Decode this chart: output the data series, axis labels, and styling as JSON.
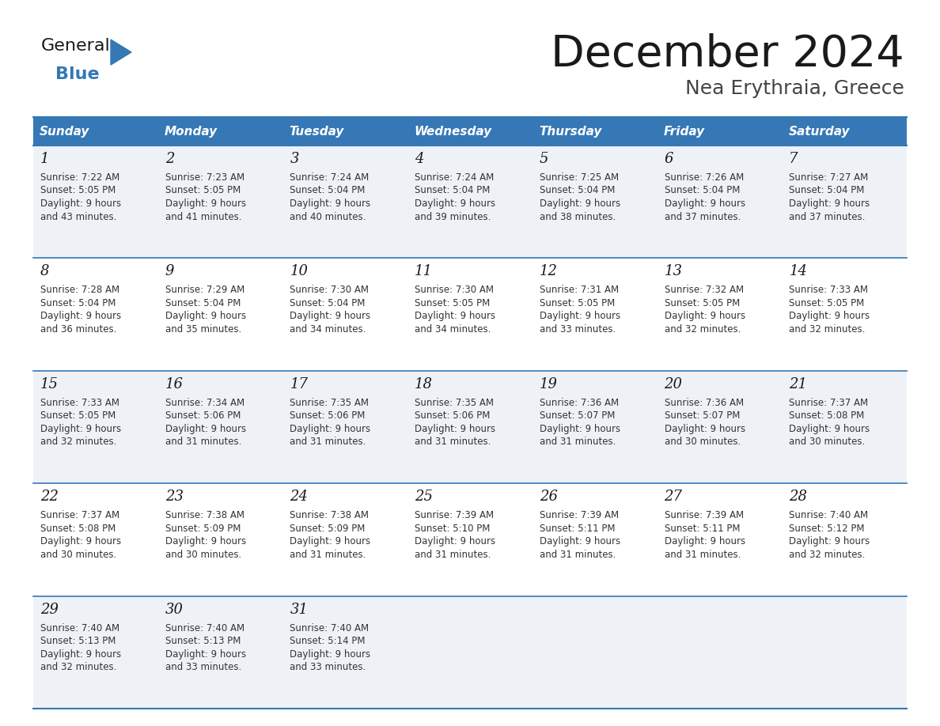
{
  "title": "December 2024",
  "subtitle": "Nea Erythraia, Greece",
  "header_color": "#3578b5",
  "header_text_color": "#ffffff",
  "days_of_week": [
    "Sunday",
    "Monday",
    "Tuesday",
    "Wednesday",
    "Thursday",
    "Friday",
    "Saturday"
  ],
  "row_bg_even": "#eef2f7",
  "row_bg_odd": "#ffffff",
  "cell_border_color": "#3578b5",
  "title_color": "#1a1a1a",
  "subtitle_color": "#444444",
  "text_color": "#333333",
  "day_num_color": "#1a1a1a",
  "calendar_data": [
    [
      {
        "day": 1,
        "sunrise": "7:22 AM",
        "sunset": "5:05 PM",
        "daylight": "9 hours and 43 minutes."
      },
      {
        "day": 2,
        "sunrise": "7:23 AM",
        "sunset": "5:05 PM",
        "daylight": "9 hours and 41 minutes."
      },
      {
        "day": 3,
        "sunrise": "7:24 AM",
        "sunset": "5:04 PM",
        "daylight": "9 hours and 40 minutes."
      },
      {
        "day": 4,
        "sunrise": "7:24 AM",
        "sunset": "5:04 PM",
        "daylight": "9 hours and 39 minutes."
      },
      {
        "day": 5,
        "sunrise": "7:25 AM",
        "sunset": "5:04 PM",
        "daylight": "9 hours and 38 minutes."
      },
      {
        "day": 6,
        "sunrise": "7:26 AM",
        "sunset": "5:04 PM",
        "daylight": "9 hours and 37 minutes."
      },
      {
        "day": 7,
        "sunrise": "7:27 AM",
        "sunset": "5:04 PM",
        "daylight": "9 hours and 37 minutes."
      }
    ],
    [
      {
        "day": 8,
        "sunrise": "7:28 AM",
        "sunset": "5:04 PM",
        "daylight": "9 hours and 36 minutes."
      },
      {
        "day": 9,
        "sunrise": "7:29 AM",
        "sunset": "5:04 PM",
        "daylight": "9 hours and 35 minutes."
      },
      {
        "day": 10,
        "sunrise": "7:30 AM",
        "sunset": "5:04 PM",
        "daylight": "9 hours and 34 minutes."
      },
      {
        "day": 11,
        "sunrise": "7:30 AM",
        "sunset": "5:05 PM",
        "daylight": "9 hours and 34 minutes."
      },
      {
        "day": 12,
        "sunrise": "7:31 AM",
        "sunset": "5:05 PM",
        "daylight": "9 hours and 33 minutes."
      },
      {
        "day": 13,
        "sunrise": "7:32 AM",
        "sunset": "5:05 PM",
        "daylight": "9 hours and 32 minutes."
      },
      {
        "day": 14,
        "sunrise": "7:33 AM",
        "sunset": "5:05 PM",
        "daylight": "9 hours and 32 minutes."
      }
    ],
    [
      {
        "day": 15,
        "sunrise": "7:33 AM",
        "sunset": "5:05 PM",
        "daylight": "9 hours and 32 minutes."
      },
      {
        "day": 16,
        "sunrise": "7:34 AM",
        "sunset": "5:06 PM",
        "daylight": "9 hours and 31 minutes."
      },
      {
        "day": 17,
        "sunrise": "7:35 AM",
        "sunset": "5:06 PM",
        "daylight": "9 hours and 31 minutes."
      },
      {
        "day": 18,
        "sunrise": "7:35 AM",
        "sunset": "5:06 PM",
        "daylight": "9 hours and 31 minutes."
      },
      {
        "day": 19,
        "sunrise": "7:36 AM",
        "sunset": "5:07 PM",
        "daylight": "9 hours and 31 minutes."
      },
      {
        "day": 20,
        "sunrise": "7:36 AM",
        "sunset": "5:07 PM",
        "daylight": "9 hours and 30 minutes."
      },
      {
        "day": 21,
        "sunrise": "7:37 AM",
        "sunset": "5:08 PM",
        "daylight": "9 hours and 30 minutes."
      }
    ],
    [
      {
        "day": 22,
        "sunrise": "7:37 AM",
        "sunset": "5:08 PM",
        "daylight": "9 hours and 30 minutes."
      },
      {
        "day": 23,
        "sunrise": "7:38 AM",
        "sunset": "5:09 PM",
        "daylight": "9 hours and 30 minutes."
      },
      {
        "day": 24,
        "sunrise": "7:38 AM",
        "sunset": "5:09 PM",
        "daylight": "9 hours and 31 minutes."
      },
      {
        "day": 25,
        "sunrise": "7:39 AM",
        "sunset": "5:10 PM",
        "daylight": "9 hours and 31 minutes."
      },
      {
        "day": 26,
        "sunrise": "7:39 AM",
        "sunset": "5:11 PM",
        "daylight": "9 hours and 31 minutes."
      },
      {
        "day": 27,
        "sunrise": "7:39 AM",
        "sunset": "5:11 PM",
        "daylight": "9 hours and 31 minutes."
      },
      {
        "day": 28,
        "sunrise": "7:40 AM",
        "sunset": "5:12 PM",
        "daylight": "9 hours and 32 minutes."
      }
    ],
    [
      {
        "day": 29,
        "sunrise": "7:40 AM",
        "sunset": "5:13 PM",
        "daylight": "9 hours and 32 minutes."
      },
      {
        "day": 30,
        "sunrise": "7:40 AM",
        "sunset": "5:13 PM",
        "daylight": "9 hours and 33 minutes."
      },
      {
        "day": 31,
        "sunrise": "7:40 AM",
        "sunset": "5:14 PM",
        "daylight": "9 hours and 33 minutes."
      },
      null,
      null,
      null,
      null
    ]
  ],
  "logo_color_general": "#1a1a1a",
  "logo_color_blue": "#3578b5"
}
